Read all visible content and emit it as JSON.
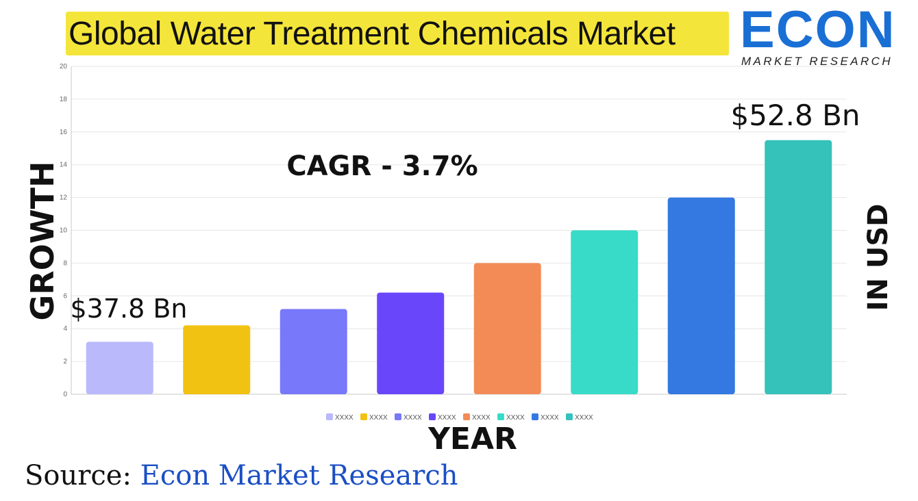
{
  "title": "Global Water Treatment Chemicals Market",
  "logo": {
    "word": "ECON",
    "subtitle": "MARKET RESEARCH",
    "color": "#1a6fd4"
  },
  "axis_labels": {
    "left": "GROWTH",
    "right": "IN USD",
    "bottom": "YEAR"
  },
  "source": {
    "prefix": "Source:",
    "name": "Econ Market Research"
  },
  "chart_data": {
    "type": "bar",
    "categories": [
      "XXXX",
      "XXXX",
      "XXXX",
      "XXXX",
      "XXXX",
      "XXXX",
      "XXXX",
      "XXXX"
    ],
    "values": [
      3.2,
      4.2,
      5.2,
      6.2,
      8.0,
      10.0,
      12.0,
      15.5
    ],
    "colors": [
      "#b9b9fb",
      "#f2c213",
      "#7878fb",
      "#6a46fa",
      "#f38b57",
      "#38dbc8",
      "#3478e2",
      "#35c2bb"
    ],
    "ylim": [
      0,
      20
    ],
    "yticks": [
      0,
      2,
      4,
      6,
      8,
      10,
      12,
      14,
      16,
      18,
      20
    ],
    "grid": true,
    "legend_position": "bottom",
    "annotations": {
      "cagr": "CAGR - 3.7%",
      "start_value": "$37.8 Bn",
      "end_value": "$52.8 Bn"
    }
  }
}
